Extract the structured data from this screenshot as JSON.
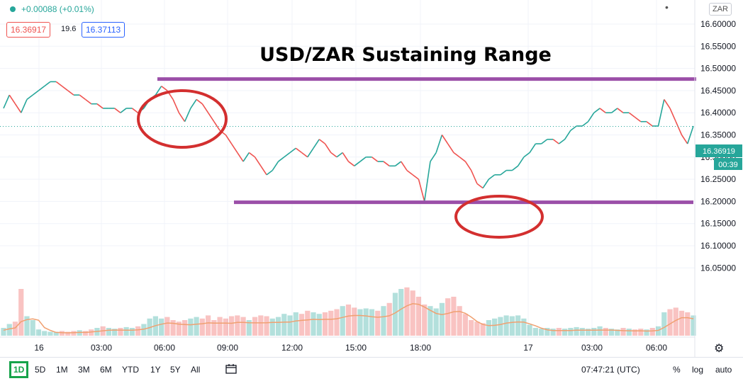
{
  "header": {
    "change": "+0.00088 (+0.01%)",
    "bid": "16.36917",
    "spread": "19.6",
    "ask": "16.37113",
    "currency": "ZAR"
  },
  "chart_data": {
    "type": "line",
    "title": "USD/ZAR Sustaining Range",
    "x_tick_labels": [
      "16",
      "03:00",
      "06:00",
      "09:00",
      "12:00",
      "15:00",
      "18:00",
      "17",
      "03:00",
      "06:00"
    ],
    "y_tick_labels": [
      "16.60000",
      "16.55000",
      "16.50000",
      "16.45000",
      "16.40000",
      "16.35000",
      "16.30000",
      "16.25000",
      "16.20000",
      "16.15000",
      "16.10000",
      "16.05000"
    ],
    "ylim": [
      16.03,
      16.62
    ],
    "last_price": "16.36919",
    "countdown": "00:39",
    "resistance": 16.476,
    "support": 16.198,
    "series": [
      {
        "values": [
          16.41,
          16.44,
          16.42,
          16.4,
          16.43,
          16.44,
          16.45,
          16.46,
          16.47,
          16.47,
          16.46,
          16.45,
          16.44,
          16.44,
          16.43,
          16.42,
          16.42,
          16.41,
          16.41,
          16.41,
          16.4,
          16.41,
          16.41,
          16.4,
          16.41,
          16.43,
          16.44,
          16.46,
          16.45,
          16.43,
          16.4,
          16.38,
          16.41,
          16.43,
          16.42,
          16.4,
          16.38,
          16.36,
          16.35,
          16.33,
          16.31,
          16.29,
          16.31,
          16.3,
          16.28,
          16.26,
          16.27,
          16.29,
          16.3,
          16.31,
          16.32,
          16.31,
          16.3,
          16.32,
          16.34,
          16.33,
          16.31,
          16.3,
          16.31,
          16.29,
          16.28,
          16.29,
          16.3,
          16.3,
          16.29,
          16.29,
          16.28,
          16.28,
          16.29,
          16.27,
          16.26,
          16.25,
          16.2,
          16.29,
          16.31,
          16.35,
          16.33,
          16.31,
          16.3,
          16.29,
          16.27,
          16.24,
          16.23,
          16.25,
          16.26,
          16.26,
          16.27,
          16.27,
          16.28,
          16.3,
          16.31,
          16.33,
          16.33,
          16.34,
          16.34,
          16.33,
          16.34,
          16.36,
          16.37,
          16.37,
          16.38,
          16.4,
          16.41,
          16.4,
          16.4,
          16.41,
          16.4,
          16.4,
          16.39,
          16.38,
          16.38,
          16.37,
          16.37,
          16.43,
          16.41,
          16.38,
          16.35,
          16.33,
          16.37
        ],
        "volume": [
          0.1,
          0.15,
          0.18,
          0.6,
          0.25,
          0.2,
          0.08,
          0.06,
          0.05,
          0.05,
          0.06,
          0.05,
          0.06,
          0.07,
          0.06,
          0.08,
          0.1,
          0.12,
          0.1,
          0.09,
          0.1,
          0.11,
          0.1,
          0.12,
          0.15,
          0.22,
          0.25,
          0.22,
          0.24,
          0.2,
          0.18,
          0.2,
          0.22,
          0.24,
          0.22,
          0.26,
          0.2,
          0.24,
          0.22,
          0.25,
          0.26,
          0.24,
          0.2,
          0.24,
          0.26,
          0.25,
          0.22,
          0.24,
          0.28,
          0.26,
          0.3,
          0.28,
          0.32,
          0.3,
          0.28,
          0.3,
          0.32,
          0.34,
          0.38,
          0.4,
          0.36,
          0.34,
          0.35,
          0.34,
          0.32,
          0.38,
          0.42,
          0.55,
          0.6,
          0.62,
          0.58,
          0.5,
          0.4,
          0.38,
          0.35,
          0.42,
          0.48,
          0.5,
          0.38,
          0.28,
          0.2,
          0.18,
          0.16,
          0.2,
          0.22,
          0.24,
          0.26,
          0.25,
          0.26,
          0.22,
          0.14,
          0.1,
          0.09,
          0.1,
          0.09,
          0.1,
          0.09,
          0.1,
          0.11,
          0.1,
          0.09,
          0.1,
          0.12,
          0.1,
          0.09,
          0.08,
          0.1,
          0.09,
          0.08,
          0.09,
          0.08,
          0.1,
          0.12,
          0.3,
          0.34,
          0.36,
          0.32,
          0.3,
          0.26
        ]
      }
    ]
  },
  "bottom": {
    "ranges": [
      "1D",
      "5D",
      "1M",
      "3M",
      "6M",
      "YTD",
      "1Y",
      "5Y",
      "All"
    ],
    "clock": "07:47:21 (UTC)",
    "percent": "%",
    "log": "log",
    "auto": "auto"
  }
}
